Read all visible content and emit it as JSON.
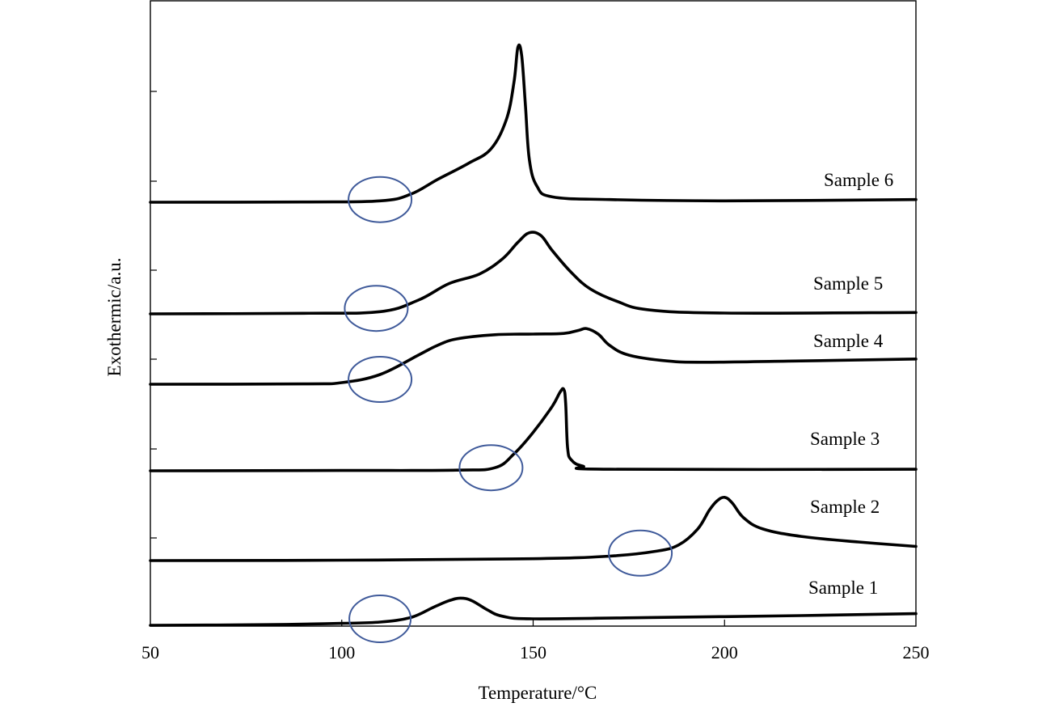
{
  "chart_data": {
    "type": "line",
    "xlabel": "Temperature/°C",
    "ylabel": "Exothermic/a.u.",
    "xlim": [
      50,
      250
    ],
    "x_ticks": [
      "50",
      "100",
      "150",
      "200",
      "250"
    ],
    "grid": false,
    "legend": "none",
    "marker_color": "#3f5a9a",
    "series": [
      {
        "name": "Sample 1",
        "points": [
          [
            50,
            0.0
          ],
          [
            80,
            0.01
          ],
          [
            100,
            0.03
          ],
          [
            110,
            0.05
          ],
          [
            118,
            0.12
          ],
          [
            124,
            0.28
          ],
          [
            128,
            0.38
          ],
          [
            131,
            0.42
          ],
          [
            134,
            0.38
          ],
          [
            138,
            0.24
          ],
          [
            142,
            0.14
          ],
          [
            150,
            0.1
          ],
          [
            180,
            0.12
          ],
          [
            220,
            0.15
          ],
          [
            250,
            0.18
          ]
        ],
        "onset_circle": [
          110,
          0.1
        ]
      },
      {
        "name": "Sample 2",
        "points": [
          [
            50,
            0.0
          ],
          [
            100,
            0.01
          ],
          [
            150,
            0.05
          ],
          [
            170,
            0.12
          ],
          [
            182,
            0.25
          ],
          [
            188,
            0.42
          ],
          [
            193,
            0.85
          ],
          [
            196,
            1.35
          ],
          [
            198,
            1.6
          ],
          [
            200,
            1.7
          ],
          [
            202,
            1.55
          ],
          [
            205,
            1.15
          ],
          [
            210,
            0.85
          ],
          [
            220,
            0.65
          ],
          [
            235,
            0.5
          ],
          [
            250,
            0.38
          ]
        ],
        "onset_circle": [
          178,
          0.2
        ]
      },
      {
        "name": "Sample 3",
        "points": [
          [
            50,
            0.0
          ],
          [
            100,
            0.01
          ],
          [
            130,
            0.02
          ],
          [
            140,
            0.1
          ],
          [
            145,
            0.55
          ],
          [
            150,
            1.25
          ],
          [
            155,
            2.1
          ],
          [
            157,
            2.55
          ],
          [
            158,
            2.65
          ],
          [
            158.5,
            2.2
          ],
          [
            159,
            0.75
          ],
          [
            160,
            0.35
          ],
          [
            163,
            0.15
          ],
          [
            170,
            0.05
          ],
          [
            250,
            0.05
          ]
        ],
        "onset_circle": [
          139,
          0.1
        ]
      },
      {
        "name": "Sample 4",
        "points": [
          [
            50,
            0.0
          ],
          [
            90,
            0.01
          ],
          [
            100,
            0.05
          ],
          [
            110,
            0.3
          ],
          [
            120,
            0.9
          ],
          [
            125,
            1.2
          ],
          [
            130,
            1.4
          ],
          [
            140,
            1.53
          ],
          [
            150,
            1.55
          ],
          [
            158,
            1.57
          ],
          [
            162,
            1.67
          ],
          [
            164,
            1.72
          ],
          [
            167,
            1.55
          ],
          [
            170,
            1.2
          ],
          [
            175,
            0.9
          ],
          [
            185,
            0.72
          ],
          [
            195,
            0.68
          ],
          [
            220,
            0.72
          ],
          [
            250,
            0.78
          ]
        ],
        "onset_circle": [
          110,
          0.15
        ]
      },
      {
        "name": "Sample 5",
        "points": [
          [
            50,
            0.0
          ],
          [
            90,
            0.02
          ],
          [
            110,
            0.08
          ],
          [
            120,
            0.5
          ],
          [
            128,
            1.1
          ],
          [
            136,
            1.45
          ],
          [
            142,
            2.0
          ],
          [
            146,
            2.6
          ],
          [
            149,
            2.95
          ],
          [
            152,
            2.85
          ],
          [
            155,
            2.3
          ],
          [
            160,
            1.5
          ],
          [
            165,
            0.9
          ],
          [
            172,
            0.45
          ],
          [
            180,
            0.15
          ],
          [
            200,
            0.03
          ],
          [
            250,
            0.05
          ]
        ],
        "onset_circle": [
          109,
          0.2
        ]
      },
      {
        "name": "Sample 6",
        "points": [
          [
            50,
            0.0
          ],
          [
            90,
            0.01
          ],
          [
            110,
            0.05
          ],
          [
            118,
            0.3
          ],
          [
            125,
            0.85
          ],
          [
            133,
            1.45
          ],
          [
            139,
            2.0
          ],
          [
            143,
            3.1
          ],
          [
            145,
            4.5
          ],
          [
            146,
            5.8
          ],
          [
            147,
            5.5
          ],
          [
            148,
            3.6
          ],
          [
            149,
            1.6
          ],
          [
            151,
            0.6
          ],
          [
            155,
            0.2
          ],
          [
            170,
            0.1
          ],
          [
            200,
            0.05
          ],
          [
            250,
            0.1
          ]
        ],
        "onset_circle": [
          110,
          0.1
        ]
      }
    ]
  }
}
